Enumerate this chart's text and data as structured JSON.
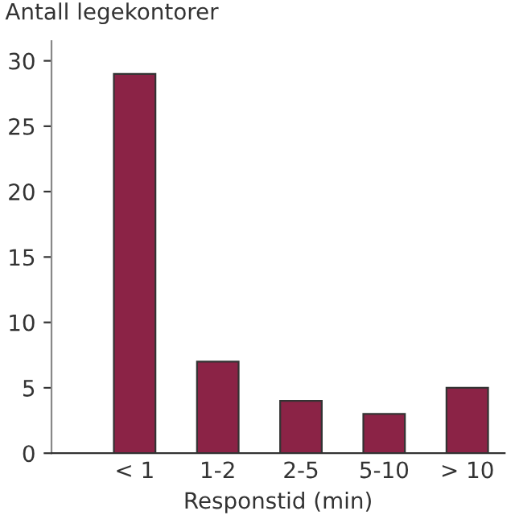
{
  "chart_data": {
    "type": "bar",
    "ylabel": "Antall legekontorer",
    "xlabel": "Responstid (min)",
    "categories": [
      "< 1",
      "1-2",
      "2-5",
      "5-10",
      "> 10"
    ],
    "values": [
      29,
      7,
      4,
      3,
      5
    ],
    "color": "#8b2346",
    "ylim": [
      0,
      31.5
    ],
    "yticks": [
      0,
      5,
      10,
      15,
      20,
      25,
      30
    ],
    "grid": false
  }
}
